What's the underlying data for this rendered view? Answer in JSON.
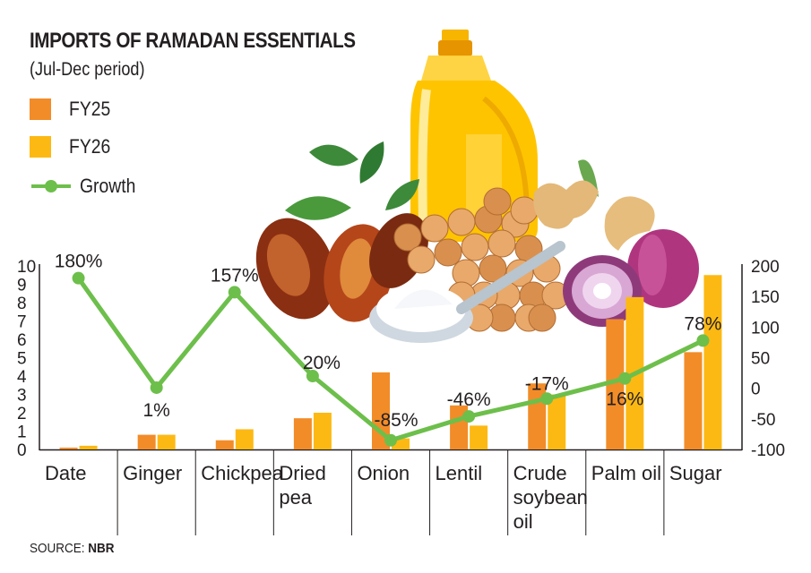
{
  "header": {
    "title": "IMPORTS OF RAMADAN ESSENTIALS",
    "subtitle": "(Jul-Dec period)"
  },
  "legend": {
    "fy25": "FY25",
    "fy26": "FY26",
    "growth": "Growth"
  },
  "source": {
    "prefix": "SOURCE: ",
    "name": "NBR"
  },
  "colors": {
    "fy25": "#f28c28",
    "fy26": "#fdb913",
    "growth": "#6dbf4b",
    "text": "#231f20"
  },
  "illustration": "oil-bottle, dates, chickpeas, flour-spoon, ginger, onions",
  "chart_data": {
    "type": "bar",
    "categories": [
      "Date",
      "Ginger",
      "Chickpea",
      "Dried pea",
      "Onion",
      "Lentil",
      "Crude soybean oil",
      "Palm oil",
      "Sugar"
    ],
    "category_lines": [
      [
        "Date"
      ],
      [
        "Ginger"
      ],
      [
        "Chickpea"
      ],
      [
        "Dried",
        "pea"
      ],
      [
        "Onion"
      ],
      [
        "Lentil"
      ],
      [
        "Crude",
        "soybean",
        "oil"
      ],
      [
        "Palm oil"
      ],
      [
        "Sugar"
      ]
    ],
    "series": [
      {
        "name": "FY25",
        "axis": "left",
        "values": [
          0.1,
          0.8,
          0.5,
          1.7,
          4.2,
          2.4,
          3.6,
          7.1,
          5.3
        ]
      },
      {
        "name": "FY26",
        "axis": "left",
        "values": [
          0.2,
          0.8,
          1.1,
          2.0,
          0.6,
          1.3,
          3.0,
          8.3,
          9.5
        ]
      },
      {
        "name": "Growth",
        "type": "line",
        "axis": "right",
        "values": [
          180,
          1,
          157,
          20,
          -85,
          -46,
          -17,
          16,
          78
        ]
      }
    ],
    "growth_labels": [
      "180%",
      "1%",
      "157%",
      "20%",
      "-85%",
      "-46%",
      "-17%",
      "16%",
      "78%"
    ],
    "left_axis": {
      "ylim": [
        0,
        10
      ],
      "ticks": [
        "0",
        "1",
        "2",
        "3",
        "4",
        "5",
        "6",
        "7",
        "8",
        "9",
        "10"
      ]
    },
    "right_axis": {
      "ylim": [
        -100,
        200
      ],
      "ticks": [
        "-100",
        "-50",
        "0",
        "50",
        "100",
        "150",
        "200"
      ]
    }
  }
}
